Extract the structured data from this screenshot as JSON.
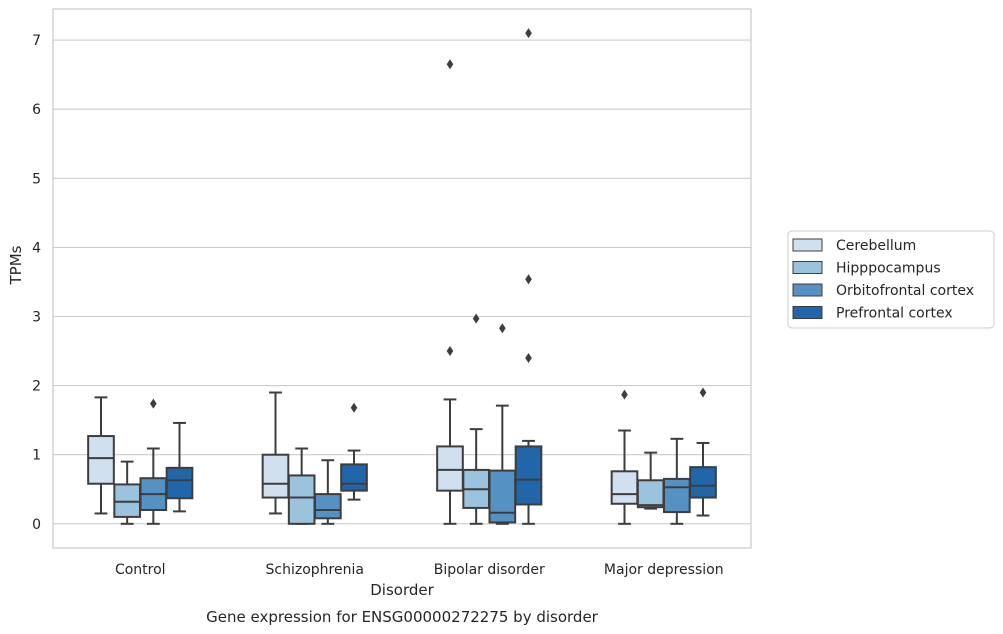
{
  "caption": "Gene expression for ENSG00000272275 by disorder",
  "chart_data": {
    "type": "box",
    "xlabel": "Disorder",
    "ylabel": "TPMs",
    "ylim": [
      -0.35,
      7.45
    ],
    "yticks": [
      0,
      1,
      2,
      3,
      4,
      5,
      6,
      7
    ],
    "grid": "horizontal",
    "legend_position": "right",
    "categories": [
      "Control",
      "Schizophrenia",
      "Bipolar disorder",
      "Major depression"
    ],
    "series": [
      {
        "name": "Cerebellum",
        "color": "#d1e0ef",
        "boxes": [
          {
            "whislo": 0.15,
            "q1": 0.58,
            "med": 0.95,
            "q3": 1.27,
            "whishi": 1.83,
            "fliers": []
          },
          {
            "whislo": 0.15,
            "q1": 0.38,
            "med": 0.58,
            "q3": 1.0,
            "whishi": 1.9,
            "fliers": []
          },
          {
            "whislo": 0.0,
            "q1": 0.48,
            "med": 0.78,
            "q3": 1.12,
            "whishi": 1.8,
            "fliers": [
              2.5,
              6.65
            ]
          },
          {
            "whislo": 0.0,
            "q1": 0.29,
            "med": 0.43,
            "q3": 0.76,
            "whishi": 1.35,
            "fliers": [
              1.87
            ]
          }
        ]
      },
      {
        "name": "Hipppocampus",
        "color": "#9bc3de",
        "boxes": [
          {
            "whislo": 0.0,
            "q1": 0.1,
            "med": 0.32,
            "q3": 0.57,
            "whishi": 0.9,
            "fliers": []
          },
          {
            "whislo": 0.0,
            "q1": 0.0,
            "med": 0.38,
            "q3": 0.7,
            "whishi": 1.09,
            "fliers": []
          },
          {
            "whislo": 0.0,
            "q1": 0.23,
            "med": 0.5,
            "q3": 0.78,
            "whishi": 1.37,
            "fliers": [
              2.97
            ]
          },
          {
            "whislo": 0.22,
            "q1": 0.24,
            "med": 0.27,
            "q3": 0.63,
            "whishi": 1.03,
            "fliers": []
          }
        ]
      },
      {
        "name": "Orbitofrontal cortex",
        "color": "#5592c3",
        "boxes": [
          {
            "whislo": 0.0,
            "q1": 0.2,
            "med": 0.43,
            "q3": 0.66,
            "whishi": 1.09,
            "fliers": [
              1.74
            ]
          },
          {
            "whislo": 0.0,
            "q1": 0.08,
            "med": 0.2,
            "q3": 0.43,
            "whishi": 0.92,
            "fliers": []
          },
          {
            "whislo": 0.0,
            "q1": 0.02,
            "med": 0.16,
            "q3": 0.77,
            "whishi": 1.71,
            "fliers": [
              2.83
            ]
          },
          {
            "whislo": 0.0,
            "q1": 0.17,
            "med": 0.53,
            "q3": 0.65,
            "whishi": 1.23,
            "fliers": []
          }
        ]
      },
      {
        "name": "Prefrontal cortex",
        "color": "#2166a8",
        "boxes": [
          {
            "whislo": 0.18,
            "q1": 0.37,
            "med": 0.63,
            "q3": 0.81,
            "whishi": 1.46,
            "fliers": []
          },
          {
            "whislo": 0.35,
            "q1": 0.48,
            "med": 0.58,
            "q3": 0.86,
            "whishi": 1.06,
            "fliers": [
              1.68
            ]
          },
          {
            "whislo": 0.0,
            "q1": 0.28,
            "med": 0.64,
            "q3": 1.12,
            "whishi": 1.2,
            "fliers": [
              2.4,
              3.54,
              7.1
            ]
          },
          {
            "whislo": 0.12,
            "q1": 0.38,
            "med": 0.55,
            "q3": 0.82,
            "whishi": 1.17,
            "fliers": [
              1.9
            ]
          }
        ]
      }
    ]
  }
}
